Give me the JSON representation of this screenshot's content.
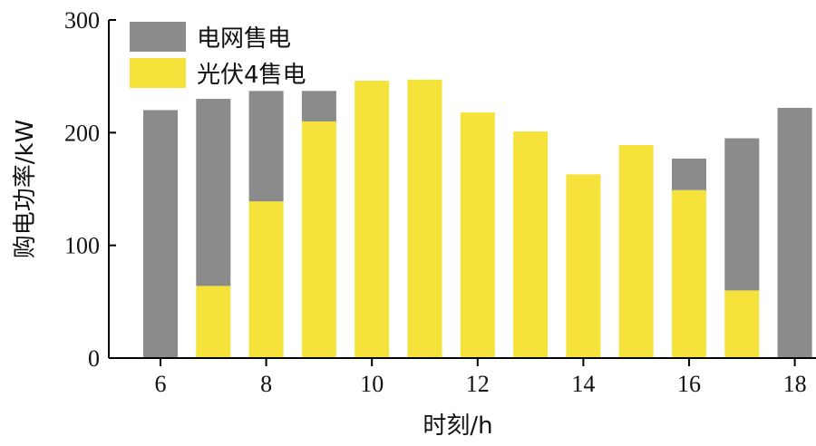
{
  "chart_data": {
    "type": "bar",
    "stacked": true,
    "title": "",
    "xlabel": "时刻/h",
    "ylabel": "购电功率/kW",
    "ylim": [
      0,
      300
    ],
    "yticks": [
      0,
      100,
      200,
      300
    ],
    "xticks": [
      6,
      8,
      10,
      12,
      14,
      16,
      18
    ],
    "x": [
      6,
      7,
      8,
      9,
      10,
      11,
      12,
      13,
      14,
      15,
      16,
      17,
      18
    ],
    "grid": false,
    "legend_position": "top-left",
    "series": [
      {
        "name": "光伏4售电",
        "color": "#f5e23a",
        "values": [
          0,
          64,
          139,
          210,
          246,
          247,
          218,
          201,
          163,
          189,
          149,
          60,
          0
        ]
      },
      {
        "name": "电网售电",
        "color": "#8c8b8b",
        "values": [
          220,
          166,
          98,
          27,
          0,
          0,
          0,
          0,
          0,
          0,
          28,
          135,
          222
        ]
      }
    ]
  }
}
